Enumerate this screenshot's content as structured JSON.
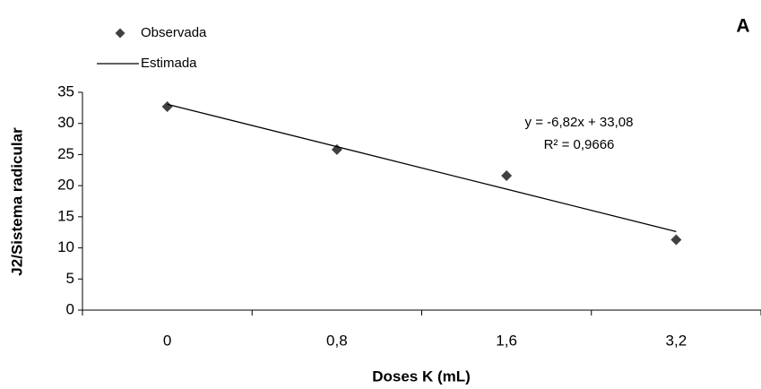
{
  "chart_data": {
    "type": "line",
    "label": "A",
    "x_label": "Doses K (mL)",
    "y_label": "J2/Sistema radicular",
    "categories": [
      "0",
      "0,8",
      "1,6",
      "3,2"
    ],
    "series": [
      {
        "name": "Observada",
        "color": "#404040",
        "marker": "diamond",
        "line": false,
        "values": [
          32.7,
          25.8,
          21.6,
          11.3
        ]
      },
      {
        "name": "Estimada",
        "color": "#000000",
        "marker": "none",
        "line": true,
        "values": [
          33.08,
          26.26,
          19.44,
          12.62
        ]
      }
    ],
    "annotations": [
      "y = -6,82x + 33,08",
      "R² = 0,9666"
    ],
    "ylim": [
      0,
      35
    ],
    "yticks": [
      0,
      5,
      10,
      15,
      20,
      25,
      30,
      35
    ],
    "grid": false
  }
}
